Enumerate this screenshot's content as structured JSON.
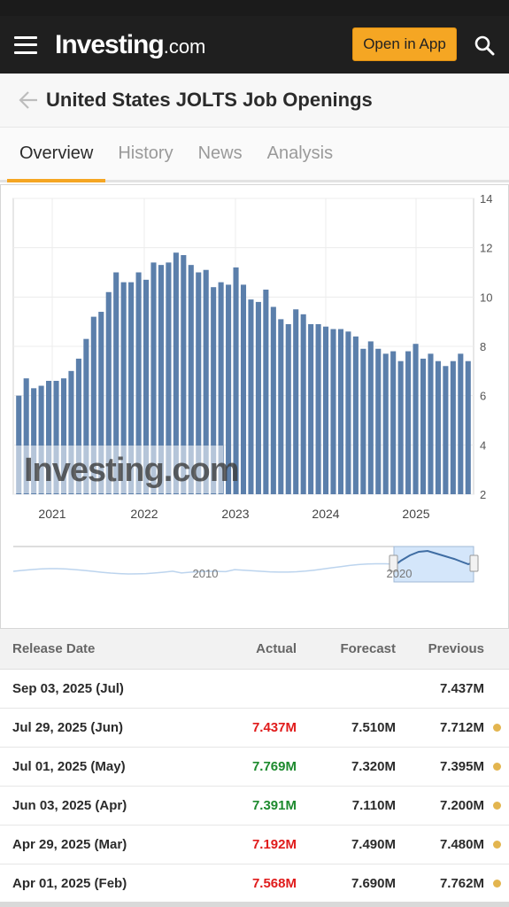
{
  "header": {
    "logo_brand": "Investing",
    "logo_tld": ".com",
    "open_app_label": "Open in App"
  },
  "page": {
    "title": "United States JOLTS Job Openings"
  },
  "tabs": [
    {
      "label": "Overview",
      "active": true
    },
    {
      "label": "History",
      "active": false
    },
    {
      "label": "News",
      "active": false
    },
    {
      "label": "Analysis",
      "active": false
    }
  ],
  "colors": {
    "accent": "#f5a623",
    "bar": "#5b7fab",
    "negative": "#e01b1b",
    "positive": "#1d8a2e"
  },
  "chart_data": {
    "type": "bar",
    "watermark": "Investing.com",
    "ylim": [
      2,
      14
    ],
    "y_ticks": [
      "14",
      "12",
      "10",
      "8",
      "6",
      "4",
      "2"
    ],
    "x_tick_labels": [
      "2021",
      "2022",
      "2023",
      "2024",
      "2025"
    ],
    "values": [
      6.0,
      6.7,
      6.3,
      6.4,
      6.6,
      6.6,
      6.7,
      7.0,
      7.5,
      8.3,
      9.2,
      9.4,
      10.2,
      11.0,
      10.6,
      10.6,
      11.0,
      10.7,
      11.4,
      11.3,
      11.4,
      11.8,
      11.7,
      11.3,
      11.0,
      11.1,
      10.4,
      10.6,
      10.5,
      11.2,
      10.5,
      9.9,
      9.8,
      10.3,
      9.6,
      9.1,
      8.9,
      9.5,
      9.3,
      8.9,
      8.9,
      8.8,
      8.7,
      8.7,
      8.6,
      8.4,
      7.9,
      8.2,
      7.9,
      7.7,
      7.8,
      7.4,
      7.8,
      8.1,
      7.5,
      7.7,
      7.4,
      7.2,
      7.4,
      7.7,
      7.4
    ],
    "navigator": {
      "labels": [
        "2010",
        "2020"
      ]
    }
  },
  "table": {
    "headers": {
      "date": "Release Date",
      "actual": "Actual",
      "forecast": "Forecast",
      "previous": "Previous"
    },
    "rows": [
      {
        "date": "Sep 03, 2025 (Jul)",
        "actual": "",
        "actual_class": "",
        "forecast": "",
        "previous": "7.437M",
        "dot": false
      },
      {
        "date": "Jul 29, 2025 (Jun)",
        "actual": "7.437M",
        "actual_class": "red",
        "forecast": "7.510M",
        "previous": "7.712M",
        "dot": true
      },
      {
        "date": "Jul 01, 2025 (May)",
        "actual": "7.769M",
        "actual_class": "green",
        "forecast": "7.320M",
        "previous": "7.395M",
        "dot": true
      },
      {
        "date": "Jun 03, 2025 (Apr)",
        "actual": "7.391M",
        "actual_class": "green",
        "forecast": "7.110M",
        "previous": "7.200M",
        "dot": true
      },
      {
        "date": "Apr 29, 2025 (Mar)",
        "actual": "7.192M",
        "actual_class": "red",
        "forecast": "7.490M",
        "previous": "7.480M",
        "dot": true
      },
      {
        "date": "Apr 01, 2025 (Feb)",
        "actual": "7.568M",
        "actual_class": "red",
        "forecast": "7.690M",
        "previous": "7.762M",
        "dot": true
      }
    ]
  }
}
